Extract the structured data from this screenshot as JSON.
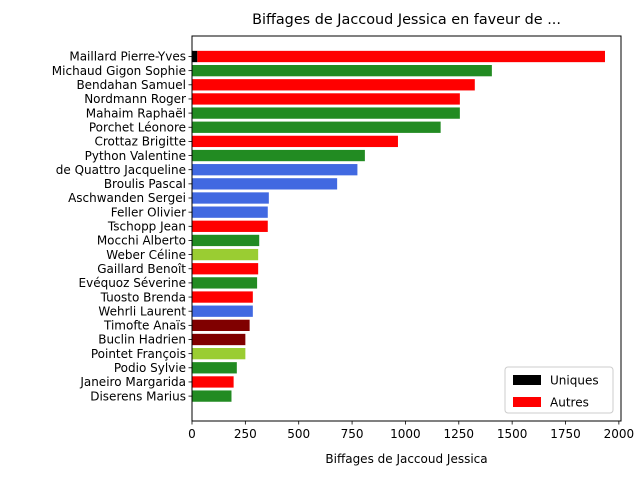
{
  "chart_data": {
    "type": "bar",
    "orientation": "horizontal",
    "title": "Biffages de Jaccoud Jessica en faveur de ...",
    "xlabel": "Biffages de Jaccoud Jessica",
    "ylabel": "",
    "xlim": [
      0,
      2010
    ],
    "xticks": [
      "0",
      "250",
      "500",
      "750",
      "1000",
      "1250",
      "1500",
      "1750",
      "2000"
    ],
    "grid": false,
    "legend_position": "bottom-right",
    "categories": [
      "Maillard Pierre-Yves",
      "Michaud Gigon Sophie",
      "Bendahan Samuel",
      "Nordmann Roger",
      "Mahaim Raphaël",
      "Porchet Léonore",
      "Crottaz Brigitte",
      "Python Valentine",
      "de Quattro Jacqueline",
      "Broulis Pascal",
      "Aschwanden Sergei",
      "Feller Olivier",
      "Tschopp Jean",
      "Mocchi Alberto",
      "Weber Céline",
      "Gaillard Benoît",
      "Evéquoz Séverine",
      "Tuosto Brenda",
      "Wehrli Laurent",
      "Timofte Anaïs",
      "Buclin Hadrien",
      "Pointet François",
      "Podio Sylvie",
      "Janeiro Margarida",
      "Diserens Marius"
    ],
    "series": [
      {
        "name": "Uniques",
        "color": "#000000",
        "values": [
          25,
          0,
          0,
          0,
          0,
          0,
          0,
          0,
          0,
          0,
          0,
          0,
          0,
          0,
          0,
          0,
          0,
          0,
          0,
          0,
          0,
          0,
          0,
          0,
          0
        ]
      },
      {
        "name": "Autres",
        "color": "#ff0000",
        "values": [
          1910,
          1405,
          1325,
          1255,
          1255,
          1165,
          965,
          810,
          775,
          680,
          360,
          355,
          355,
          315,
          310,
          310,
          305,
          285,
          285,
          270,
          250,
          250,
          210,
          195,
          185
        ],
        "colors": [
          "#ff0000",
          "#228b22",
          "#ff0000",
          "#ff0000",
          "#228b22",
          "#228b22",
          "#ff0000",
          "#228b22",
          "#4169e1",
          "#4169e1",
          "#4169e1",
          "#4169e1",
          "#ff0000",
          "#228b22",
          "#9acd32",
          "#ff0000",
          "#228b22",
          "#ff0000",
          "#4169e1",
          "#800000",
          "#800000",
          "#9acd32",
          "#228b22",
          "#ff0000",
          "#228b22"
        ]
      }
    ]
  }
}
